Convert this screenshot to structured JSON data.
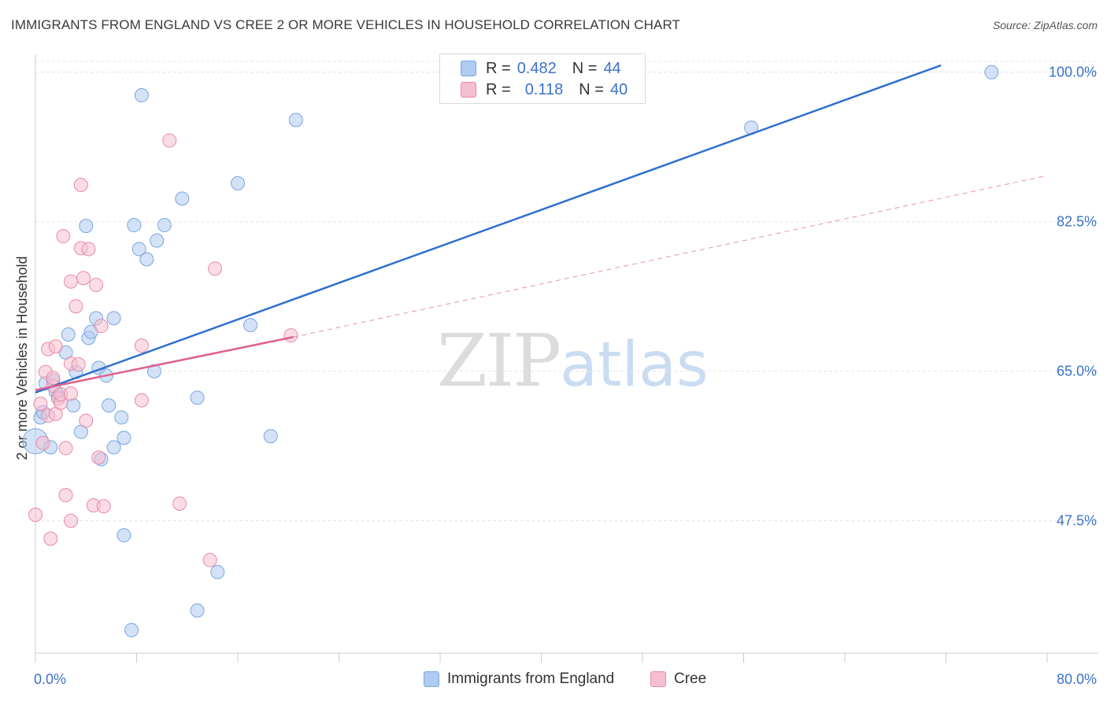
{
  "title": "IMMIGRANTS FROM ENGLAND VS CREE 2 OR MORE VEHICLES IN HOUSEHOLD CORRELATION CHART",
  "source": "Source: ZipAtlas.com",
  "watermark": {
    "zip": "ZIP",
    "atlas": "atlas"
  },
  "legend": {
    "rows": [
      {
        "r_label": "R =",
        "r_value": "0.482",
        "n_label": "N =",
        "n_value": "44",
        "color": "#aecbf0"
      },
      {
        "r_label": "R =",
        "r_value": "0.118",
        "n_label": "N =",
        "n_value": "40",
        "color": "#f5bfd0"
      }
    ]
  },
  "bottom_legend": [
    {
      "label": "Immigrants from England",
      "color": "#aecbf0"
    },
    {
      "label": "Cree",
      "color": "#f5bfd0"
    }
  ],
  "colors": {
    "blue_fill": "#aecbf0",
    "blue_stroke": "#7aa6de",
    "blue_line": "#2f6fcf",
    "pink_fill": "#f5bfd0",
    "pink_stroke": "#e88aa8",
    "pink_line": "#e0608e",
    "tick_text": "#3b72c8",
    "grid": "#e3e3e3"
  },
  "chart_data": {
    "type": "scatter",
    "title": "IMMIGRANTS FROM ENGLAND VS CREE 2 OR MORE VEHICLES IN HOUSEHOLD CORRELATION CHART",
    "xlabel": "",
    "ylabel": "2 or more Vehicles in Household",
    "xlim": [
      0,
      80
    ],
    "ylim": [
      32,
      102
    ],
    "x_tick_labels": [
      "0.0%",
      "80.0%"
    ],
    "y_ticks": [
      47.5,
      65.0,
      82.5,
      100.0
    ],
    "y_tick_labels": [
      "47.5%",
      "65.0%",
      "82.5%",
      "100.0%"
    ],
    "grid": true,
    "legend_position": "top-center",
    "series": [
      {
        "name": "Immigrants from England",
        "color": "#aecbf0",
        "points": [
          [
            0.0,
            56.8
          ],
          [
            0.4,
            59.6
          ],
          [
            1.2,
            56.1
          ],
          [
            0.8,
            63.6
          ],
          [
            1.4,
            63.9
          ],
          [
            1.8,
            62.1
          ],
          [
            2.4,
            67.2
          ],
          [
            2.6,
            69.3
          ],
          [
            3.0,
            61.0
          ],
          [
            3.2,
            64.9
          ],
          [
            3.6,
            57.9
          ],
          [
            4.0,
            82.0
          ],
          [
            4.2,
            68.9
          ],
          [
            4.4,
            69.6
          ],
          [
            4.8,
            71.2
          ],
          [
            5.0,
            65.4
          ],
          [
            5.2,
            54.7
          ],
          [
            5.6,
            64.5
          ],
          [
            5.8,
            61.0
          ],
          [
            6.2,
            71.2
          ],
          [
            6.2,
            56.1
          ],
          [
            6.8,
            59.6
          ],
          [
            7.0,
            57.2
          ],
          [
            7.0,
            45.8
          ],
          [
            7.6,
            34.7
          ],
          [
            7.8,
            82.1
          ],
          [
            8.2,
            79.3
          ],
          [
            8.4,
            97.3
          ],
          [
            8.8,
            78.1
          ],
          [
            9.4,
            65.0
          ],
          [
            9.6,
            80.3
          ],
          [
            10.2,
            82.1
          ],
          [
            11.6,
            85.2
          ],
          [
            12.8,
            61.9
          ],
          [
            12.8,
            37.0
          ],
          [
            14.4,
            41.5
          ],
          [
            16.0,
            87.0
          ],
          [
            17.0,
            70.4
          ],
          [
            18.6,
            57.4
          ],
          [
            20.6,
            94.4
          ],
          [
            56.6,
            93.5
          ],
          [
            75.6,
            100.0
          ],
          [
            0.6,
            60.2
          ],
          [
            1.6,
            62.6
          ]
        ]
      },
      {
        "name": "Cree",
        "color": "#f5bfd0",
        "points": [
          [
            0.0,
            48.2
          ],
          [
            0.4,
            61.2
          ],
          [
            0.6,
            56.6
          ],
          [
            0.8,
            64.9
          ],
          [
            1.0,
            59.8
          ],
          [
            1.0,
            67.6
          ],
          [
            1.2,
            45.4
          ],
          [
            1.4,
            63.3
          ],
          [
            1.4,
            64.2
          ],
          [
            1.6,
            60.0
          ],
          [
            1.6,
            67.9
          ],
          [
            1.8,
            61.8
          ],
          [
            2.0,
            61.3
          ],
          [
            2.0,
            62.3
          ],
          [
            2.2,
            80.8
          ],
          [
            2.4,
            56.0
          ],
          [
            2.4,
            50.5
          ],
          [
            2.8,
            65.9
          ],
          [
            2.8,
            47.5
          ],
          [
            2.8,
            75.5
          ],
          [
            2.8,
            62.4
          ],
          [
            3.2,
            72.6
          ],
          [
            3.4,
            65.8
          ],
          [
            3.6,
            86.8
          ],
          [
            3.6,
            79.4
          ],
          [
            3.8,
            75.9
          ],
          [
            4.0,
            59.2
          ],
          [
            4.2,
            79.3
          ],
          [
            4.6,
            49.3
          ],
          [
            4.8,
            75.1
          ],
          [
            5.0,
            54.9
          ],
          [
            5.2,
            70.3
          ],
          [
            5.4,
            49.2
          ],
          [
            8.4,
            68.0
          ],
          [
            8.4,
            61.6
          ],
          [
            10.6,
            92.0
          ],
          [
            11.4,
            49.5
          ],
          [
            13.8,
            42.9
          ],
          [
            14.2,
            77.0
          ],
          [
            20.2,
            69.2
          ]
        ]
      }
    ],
    "trendlines": [
      {
        "series": "Immigrants from England",
        "x": [
          0,
          71.6
        ],
        "y": [
          62.5,
          100.8
        ],
        "style": "solid"
      },
      {
        "series": "Cree",
        "x": [
          0,
          20.4
        ],
        "y": [
          62.8,
          69.0
        ],
        "style": "solid"
      },
      {
        "series": "Cree",
        "x": [
          20.4,
          80
        ],
        "y": [
          69.0,
          87.9
        ],
        "style": "dashed"
      }
    ]
  }
}
